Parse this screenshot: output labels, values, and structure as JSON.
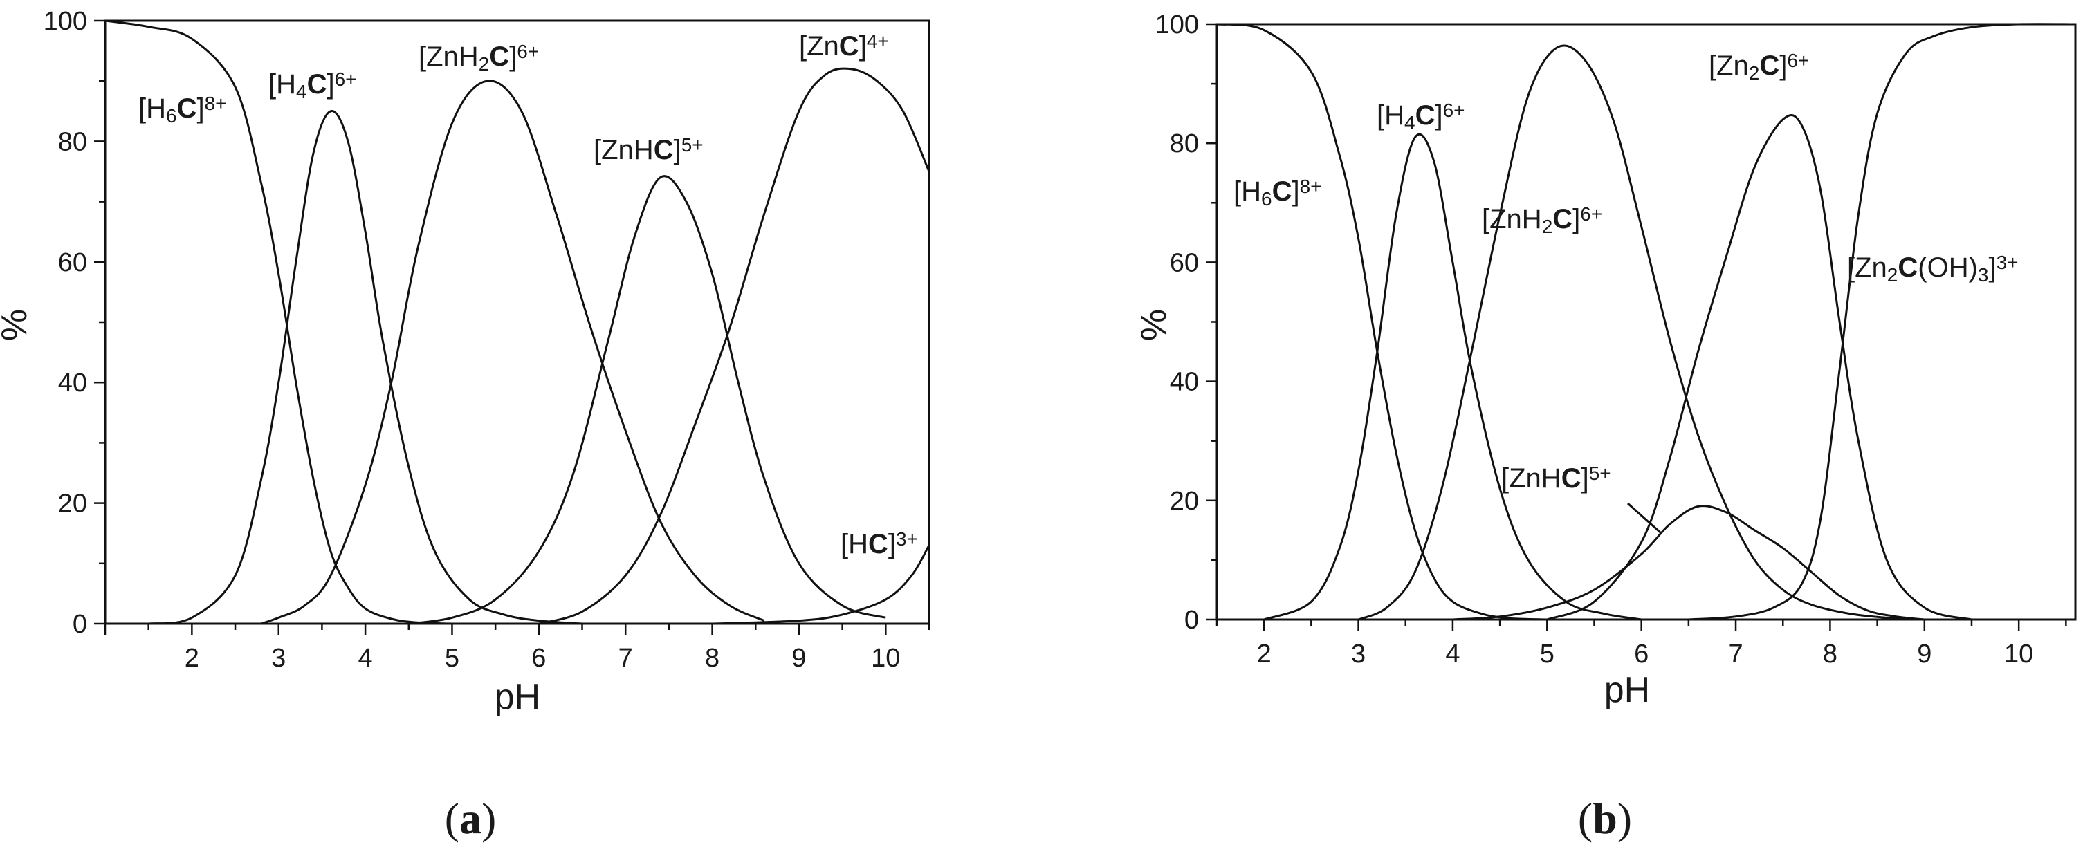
{
  "chart_data": [
    {
      "type": "line",
      "panel_label": "a",
      "xlabel": "pH",
      "ylabel": "%",
      "xlim": [
        1,
        10.5
      ],
      "ylim": [
        0,
        100
      ],
      "xticks": [
        2,
        3,
        4,
        5,
        6,
        7,
        8,
        9,
        10
      ],
      "yticks": [
        0,
        20,
        40,
        60,
        80,
        100
      ],
      "grid": false,
      "series": [
        {
          "name": "[H6C]8+",
          "label": {
            "pre": "[H",
            "sub": "6",
            "bold": "C",
            "post": "]",
            "sup": "8+"
          },
          "x": [
            1.0,
            1.5,
            2.0,
            2.5,
            2.8,
            3.0,
            3.2,
            3.4,
            3.6,
            3.8,
            4.0,
            4.3,
            4.6,
            5.0,
            5.5
          ],
          "y": [
            100,
            99,
            97,
            89,
            73,
            58,
            40,
            24,
            12,
            6,
            2.5,
            0.8,
            0.2,
            0,
            0
          ]
        },
        {
          "name": "[H4C]6+",
          "label": {
            "pre": "[H",
            "sub": "4",
            "bold": "C",
            "post": "]",
            "sup": "6+"
          },
          "x": [
            1.5,
            2.0,
            2.5,
            2.8,
            3.0,
            3.2,
            3.4,
            3.6,
            3.8,
            4.0,
            4.2,
            4.5,
            4.8,
            5.2,
            5.6,
            6.0,
            6.5
          ],
          "y": [
            0,
            1,
            8,
            24,
            40,
            60,
            78,
            85,
            80,
            65,
            47,
            26,
            12,
            4,
            1.5,
            0.5,
            0
          ]
        },
        {
          "name": "[ZnH2C]6+",
          "label": {
            "pre": "[ZnH",
            "sub": "2",
            "bold": "C",
            "post": "]",
            "sup": "6+"
          },
          "x": [
            2.8,
            3.0,
            3.3,
            3.6,
            4.0,
            4.3,
            4.6,
            5.0,
            5.4,
            5.8,
            6.2,
            6.6,
            7.0,
            7.4,
            7.8,
            8.2,
            8.6
          ],
          "y": [
            0,
            1,
            3,
            8,
            23,
            40,
            62,
            83,
            90,
            85,
            68,
            49,
            32,
            17,
            8,
            3,
            0.5
          ]
        },
        {
          "name": "[ZnHC]5+",
          "label": {
            "pre": "[ZnH",
            "sub": "",
            "bold": "C",
            "post": "]",
            "sup": "5+"
          },
          "x": [
            4.5,
            5.0,
            5.5,
            6.0,
            6.4,
            6.8,
            7.1,
            7.4,
            7.7,
            8.0,
            8.3,
            8.6,
            9.0,
            9.5,
            10.0
          ],
          "y": [
            0,
            1,
            4,
            12,
            25,
            47,
            64,
            74,
            70,
            58,
            40,
            24,
            10,
            3,
            1
          ]
        },
        {
          "name": "[ZnC]4+",
          "label": {
            "pre": "[Zn",
            "sub": "",
            "bold": "C",
            "post": "]",
            "sup": "4+"
          },
          "x": [
            6.0,
            6.5,
            7.0,
            7.4,
            7.8,
            8.2,
            8.6,
            9.0,
            9.3,
            9.6,
            9.9,
            10.2,
            10.5
          ],
          "y": [
            0,
            2,
            8,
            18,
            33,
            49,
            68,
            85,
            91,
            92,
            90,
            85,
            75
          ]
        },
        {
          "name": "[HC]3+",
          "label": {
            "pre": "[H",
            "sub": "",
            "bold": "C",
            "post": "]",
            "sup": "3+"
          },
          "x": [
            8.0,
            9.0,
            9.5,
            10.0,
            10.3,
            10.5
          ],
          "y": [
            0,
            0.5,
            1.5,
            4,
            8,
            13
          ]
        }
      ]
    },
    {
      "type": "line",
      "panel_label": "b",
      "xlabel": "pH",
      "ylabel": "%",
      "xlim": [
        1.5,
        10.6
      ],
      "ylim": [
        0,
        100
      ],
      "xticks": [
        2,
        3,
        4,
        5,
        6,
        7,
        8,
        9,
        10
      ],
      "yticks": [
        0,
        20,
        40,
        60,
        80,
        100
      ],
      "grid": false,
      "series": [
        {
          "name": "[H6C]8+",
          "label": {
            "pre": "[H",
            "sub": "6",
            "bold": "C",
            "post": "]",
            "sup": "8+"
          },
          "x": [
            1.5,
            2.0,
            2.5,
            2.8,
            3.0,
            3.2,
            3.4,
            3.6,
            3.8,
            4.0,
            4.3,
            4.6,
            5.0
          ],
          "y": [
            100,
            99,
            92,
            78,
            64,
            45,
            28,
            15,
            7,
            3,
            1,
            0.2,
            0
          ]
        },
        {
          "name": "[H4C]6+",
          "label": {
            "pre": "[H",
            "sub": "4",
            "bold": "C",
            "post": "]",
            "sup": "6+"
          },
          "x": [
            2.0,
            2.5,
            2.8,
            3.0,
            3.2,
            3.4,
            3.6,
            3.8,
            4.0,
            4.2,
            4.5,
            4.8,
            5.2,
            5.6,
            6.0
          ],
          "y": [
            0,
            3,
            12,
            25,
            45,
            68,
            81,
            77,
            60,
            42,
            22,
            10,
            3,
            1,
            0
          ]
        },
        {
          "name": "[ZnH2C]6+",
          "label": {
            "pre": "[ZnH",
            "sub": "2",
            "bold": "C",
            "post": "]",
            "sup": "6+"
          },
          "x": [
            3.0,
            3.3,
            3.6,
            3.9,
            4.2,
            4.5,
            4.8,
            5.1,
            5.4,
            5.7,
            6.0,
            6.3,
            6.6,
            6.9,
            7.2,
            7.5,
            7.8,
            8.2,
            8.6,
            9.0
          ],
          "y": [
            0,
            2,
            8,
            23,
            45,
            68,
            88,
            96,
            94,
            84,
            66,
            47,
            31,
            19,
            10,
            5,
            2.5,
            1,
            0.3,
            0
          ]
        },
        {
          "name": "[ZnHC]5+",
          "label": {
            "pre": "[ZnH",
            "sub": "",
            "bold": "C",
            "post": "]",
            "sup": "5+"
          },
          "x": [
            4.0,
            4.5,
            5.0,
            5.5,
            6.0,
            6.3,
            6.6,
            6.9,
            7.2,
            7.5,
            7.8,
            8.1,
            8.4,
            8.7,
            9.0
          ],
          "y": [
            0,
            0.5,
            2,
            5,
            11,
            16,
            19,
            18,
            15,
            12,
            8,
            4,
            1.5,
            0.5,
            0
          ]
        },
        {
          "name": "[Zn2C]6+",
          "label": {
            "pre": "[Zn",
            "sub": "2",
            "bold": "C",
            "post": "]",
            "sup": "6+"
          },
          "x": [
            5.0,
            5.5,
            6.0,
            6.3,
            6.6,
            6.9,
            7.2,
            7.5,
            7.7,
            7.9,
            8.1,
            8.3,
            8.6,
            9.0,
            9.5
          ],
          "y": [
            0,
            3,
            13,
            27,
            45,
            61,
            76,
            84,
            83,
            72,
            50,
            30,
            10,
            2,
            0
          ]
        },
        {
          "name": "[Zn2C(OH)3]3+",
          "label": {
            "pre": "[Zn",
            "sub": "2",
            "bold": "C",
            "post": "(OH)",
            "sub2": "3",
            "post2": "]",
            "sup": "3+"
          },
          "x": [
            6.5,
            7.0,
            7.4,
            7.7,
            7.9,
            8.1,
            8.3,
            8.5,
            8.8,
            9.1,
            9.5,
            10.0,
            10.6
          ],
          "y": [
            0,
            0.5,
            2,
            6,
            17,
            42,
            68,
            85,
            95,
            98,
            99.5,
            100,
            100
          ]
        }
      ]
    }
  ],
  "panel_labels": {
    "a": "a",
    "b": "b"
  }
}
